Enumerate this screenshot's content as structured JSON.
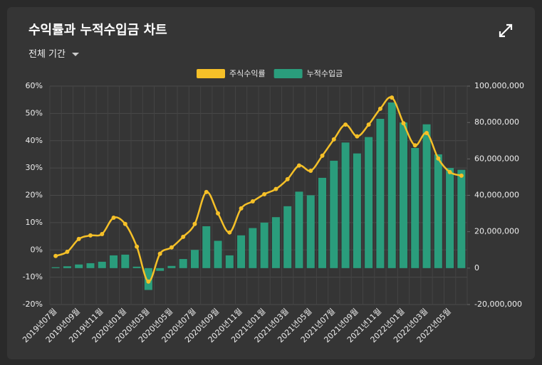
{
  "title": "수익률과 누적수입금 차트",
  "period": "전체 기간",
  "chart_data": {
    "type": "combo",
    "categories": [
      "2019년07월",
      null,
      "2019년09월",
      null,
      "2019년11월",
      null,
      "2020년01월",
      null,
      "2020년03월",
      null,
      "2020년05월",
      null,
      "2020년07월",
      null,
      "2020년09월",
      null,
      "2020년11월",
      null,
      "2021년01월",
      null,
      "2021년03월",
      null,
      "2021년05월",
      null,
      "2021년07월",
      null,
      "2021년09월",
      null,
      "2021년11월",
      null,
      "2022년01월",
      null,
      "2022년03월",
      null,
      "2022년05월",
      null
    ],
    "series": [
      {
        "name": "주식수익률",
        "type": "line",
        "color": "#f5c028",
        "values": [
          -2.2,
          -0.7,
          4,
          5.3,
          5.8,
          11.8,
          9.5,
          1.2,
          -11.6,
          -1.4,
          0.9,
          4.8,
          9.5,
          21.2,
          13.4,
          6.4,
          15.2,
          17.8,
          20.4,
          22.3,
          25.9,
          30.9,
          29,
          34.5,
          40.5,
          45.9,
          41.6,
          45.9,
          51.7,
          55.8,
          46.4,
          38.3,
          42.8,
          33.5,
          28.5,
          27.2
        ]
      },
      {
        "name": "누적수입금",
        "type": "bar",
        "axis": "y2",
        "color": "#2a9d7c",
        "values": [
          500000,
          1000000,
          2000000,
          2700000,
          3500000,
          7000000,
          7400000,
          800000,
          -12000000,
          -1500000,
          1200000,
          5000000,
          10000000,
          23000000,
          15000000,
          7000000,
          18000000,
          22000000,
          25000000,
          28000000,
          34000000,
          42000000,
          40000000,
          49600000,
          59000000,
          69000000,
          63000000,
          72000000,
          82000000,
          91000000,
          80000000,
          66000000,
          79000000,
          62500000,
          55000000,
          54000000
        ]
      }
    ],
    "ylim": [
      -20,
      60
    ],
    "yticks": [
      {
        "value": -20,
        "label": "-20%"
      },
      {
        "value": -10,
        "label": "-10%"
      },
      {
        "value": 0,
        "label": "0%"
      },
      {
        "value": 10,
        "label": "10%"
      },
      {
        "value": 20,
        "label": "20%"
      },
      {
        "value": 30,
        "label": "30%"
      },
      {
        "value": 40,
        "label": "40%"
      },
      {
        "value": 50,
        "label": "50%"
      },
      {
        "value": 60,
        "label": "60%"
      }
    ],
    "y2lim": [
      -20000000,
      100000000
    ],
    "y2ticks": [
      {
        "value": -20000000,
        "label": "-20,000,000"
      },
      0,
      {
        "value": 20000000,
        "label": "20,000,000"
      },
      {
        "value": 40000000,
        "label": "40,000,000"
      },
      {
        "value": 60000000,
        "label": "60,000,000"
      },
      {
        "value": 80000000,
        "label": "80,000,000"
      },
      {
        "value": 100000000,
        "label": "100,000,000"
      }
    ],
    "grid": true,
    "legend": "top"
  }
}
